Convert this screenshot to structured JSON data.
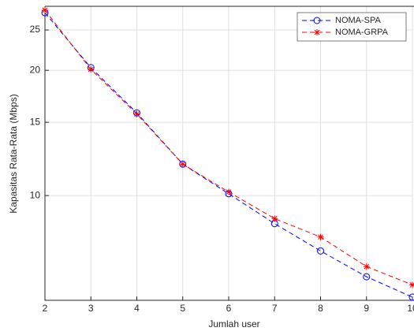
{
  "chart_data": {
    "type": "line",
    "x": [
      2,
      3,
      4,
      5,
      6,
      7,
      8,
      9,
      10
    ],
    "series": [
      {
        "name": "NOMA-SPA",
        "color": "#0000ff",
        "marker": "circle",
        "values": [
          27.5,
          20.3,
          15.8,
          11.9,
          10.1,
          8.56,
          7.36,
          6.38,
          5.7
        ]
      },
      {
        "name": "NOMA-GRPA",
        "color": "#ff0000",
        "marker": "asterisk",
        "values": [
          27.9,
          20.1,
          15.7,
          11.9,
          10.2,
          8.8,
          7.95,
          6.75,
          6.1
        ]
      }
    ],
    "xlabel": "Jumlah user",
    "ylabel": "Kapasitas Rata-Rata (Mbps)",
    "xlim": [
      2,
      10
    ],
    "xticks": [
      2,
      3,
      4,
      5,
      6,
      7,
      8,
      9,
      10
    ],
    "ylim": [
      5.6,
      28.5
    ],
    "yticks": [
      10,
      15,
      20,
      25
    ],
    "ylog": true,
    "grid": true,
    "legend": "northeast"
  }
}
